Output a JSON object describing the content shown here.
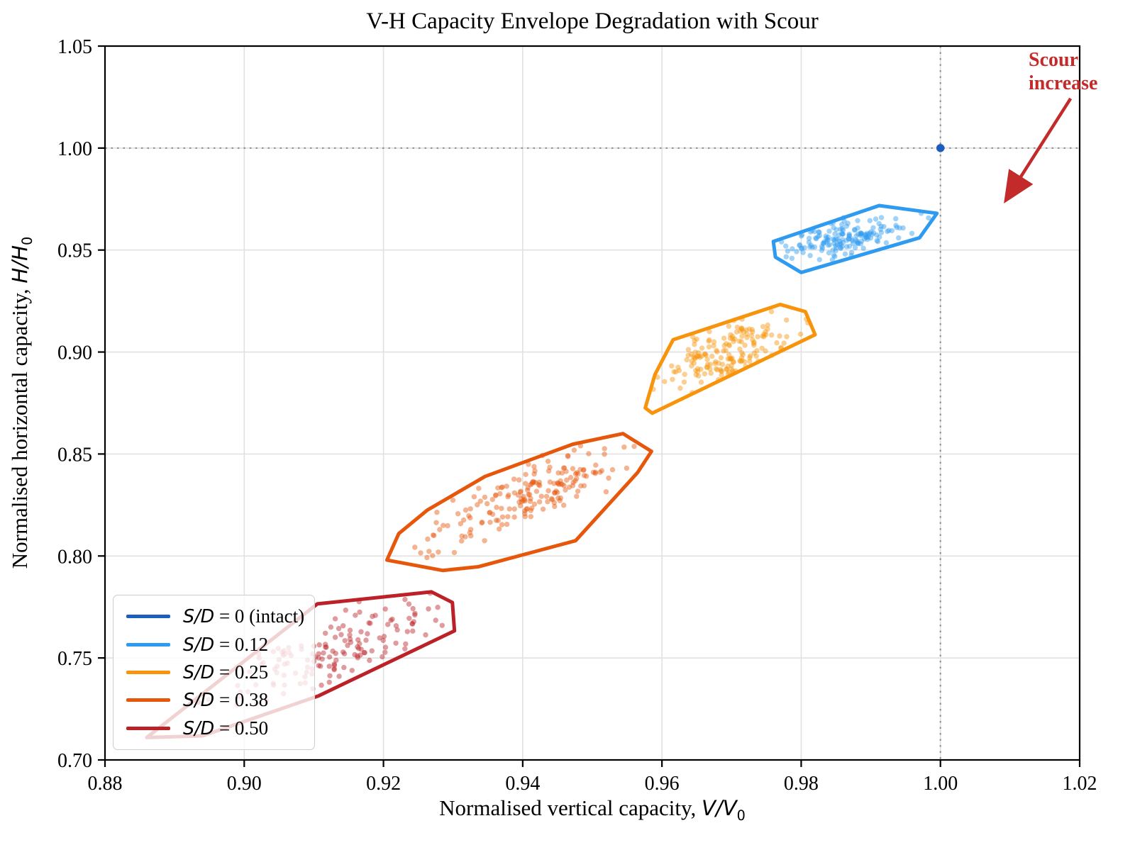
{
  "labels": {
    "x_text": "Normalised vertical capacity, ",
    "x_math": "V/V",
    "x_sub": "0",
    "y_text": "Normalised horizontal capacity, ",
    "y_math": "H/H",
    "y_sub": "0"
  },
  "annotation": {
    "line1": "Scour",
    "line2": "increase",
    "color": "#C32B2B",
    "arrow_from": [
      1.0187,
      1.0243
    ],
    "arrow_to": [
      1.0096,
      0.9755
    ]
  },
  "chart_data": {
    "type": "scatter",
    "title": "V-H Capacity Envelope Degradation with Scour",
    "xlabel": "Normalised vertical capacity, V/V0",
    "ylabel": "Normalised horizontal capacity, H/H0",
    "xlim": [
      0.88,
      1.02
    ],
    "ylim": [
      0.7,
      1.05
    ],
    "xticks": [
      "0.88",
      "0.90",
      "0.92",
      "0.94",
      "0.96",
      "0.98",
      "1.00",
      "1.02"
    ],
    "yticks": [
      "0.70",
      "0.75",
      "0.80",
      "0.85",
      "0.90",
      "0.95",
      "1.00",
      "1.05"
    ],
    "grid": true,
    "grid_color": "#E1E1E1",
    "ref_line_color": "#8C8C8C",
    "reference_lines": {
      "x": 1.0,
      "y": 1.0
    },
    "legend_position": "lower left",
    "marker_radius": 3.7,
    "marker_alpha": 0.45,
    "hull_line_width": 5,
    "series": [
      {
        "name": "S/D = 0 (intact)",
        "label_math": "S/D",
        "label_rest": " = 0 (intact)",
        "color": "#1B5EBE",
        "points": [
          [
            1.0,
            1.0
          ]
        ]
      },
      {
        "name": "S/D = 0.12",
        "label_math": "S/D",
        "label_rest": " = 0.12",
        "color": "#2F9BF0",
        "hull": [
          [
            0.976,
            0.9542
          ],
          [
            0.9912,
            0.9718
          ],
          [
            0.9995,
            0.968
          ],
          [
            0.997,
            0.956
          ],
          [
            0.98,
            0.939
          ],
          [
            0.9763,
            0.9465
          ]
        ],
        "cluster": {
          "n": 160,
          "center": [
            0.9862,
            0.9562
          ],
          "sd": [
            0.004,
            0.005
          ],
          "rho": 0.5,
          "seed": 7
        }
      },
      {
        "name": "S/D = 0.25",
        "label_math": "S/D",
        "label_rest": " = 0.25",
        "color": "#F7940B",
        "hull": [
          [
            0.9576,
            0.8726
          ],
          [
            0.959,
            0.889
          ],
          [
            0.9616,
            0.906
          ],
          [
            0.977,
            0.9233
          ],
          [
            0.9806,
            0.9198
          ],
          [
            0.982,
            0.9085
          ],
          [
            0.9586,
            0.87
          ]
        ],
        "cluster": {
          "n": 170,
          "center": [
            0.9692,
            0.899
          ],
          "sd": [
            0.0046,
            0.0088
          ],
          "rho": 0.55,
          "seed": 21
        }
      },
      {
        "name": "S/D = 0.38",
        "label_math": "S/D",
        "label_rest": " = 0.38",
        "color": "#E6570C",
        "hull": [
          [
            0.9205,
            0.798
          ],
          [
            0.9222,
            0.811
          ],
          [
            0.9263,
            0.8225
          ],
          [
            0.9346,
            0.839
          ],
          [
            0.9472,
            0.8548
          ],
          [
            0.9544,
            0.86
          ],
          [
            0.9585,
            0.8513
          ],
          [
            0.9565,
            0.8409
          ],
          [
            0.9476,
            0.8075
          ],
          [
            0.9336,
            0.7947
          ],
          [
            0.9285,
            0.7929
          ]
        ],
        "cluster": {
          "n": 185,
          "center": [
            0.9408,
            0.83
          ],
          "sd": [
            0.007,
            0.0125
          ],
          "rho": 0.78,
          "seed": 33
        }
      },
      {
        "name": "S/D = 0.50",
        "label_math": "S/D",
        "label_rest": " = 0.50",
        "color": "#BB2127",
        "hull": [
          [
            0.886,
            0.711
          ],
          [
            0.9105,
            0.7765
          ],
          [
            0.9269,
            0.7824
          ],
          [
            0.9299,
            0.7772
          ],
          [
            0.9302,
            0.7633
          ],
          [
            0.9106,
            0.7313
          ],
          [
            0.894,
            0.7118
          ]
        ],
        "cluster": {
          "n": 150,
          "center": [
            0.913,
            0.7535
          ],
          "sd": [
            0.0082,
            0.0135
          ],
          "rho": 0.78,
          "seed": 55
        }
      }
    ]
  }
}
